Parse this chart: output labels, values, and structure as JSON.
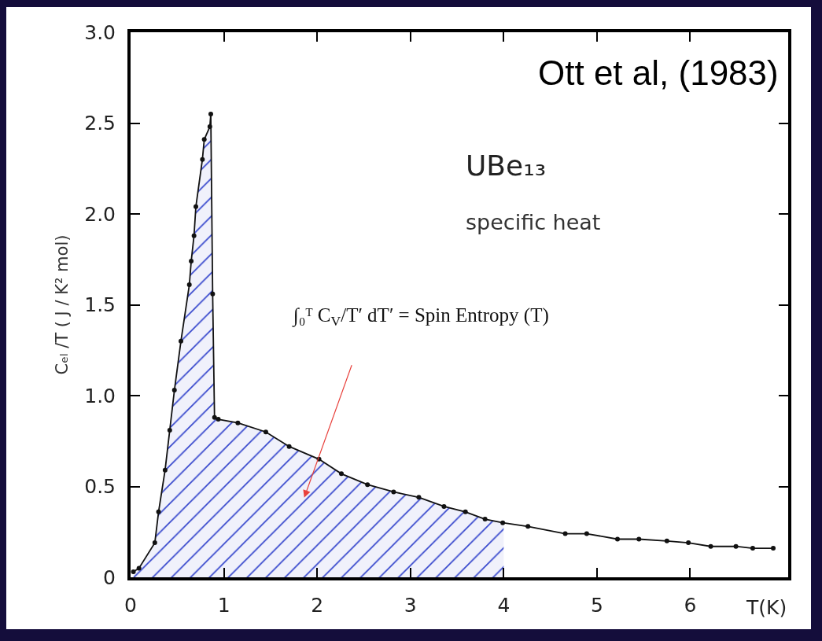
{
  "chart_data": {
    "type": "line",
    "xlabel": "T(K)",
    "ylabel": "Cₑₗ /T ( J / K² mol)",
    "xlim": [
      0,
      7.05
    ],
    "ylim": [
      0,
      3.0
    ],
    "xticks": [
      0,
      1,
      2,
      3,
      4,
      5,
      6
    ],
    "yticks": [
      0,
      0.5,
      {
        "value": 1,
        "label": "1.0"
      },
      1.5,
      {
        "value": 2,
        "label": "2.0"
      },
      2.5,
      {
        "value": 3,
        "label": "3.0"
      }
    ],
    "series": [
      {
        "type": "area",
        "color": "#3344cc",
        "x": [
          0.03,
          0.09,
          0.26,
          0.3,
          0.37,
          0.42,
          0.47,
          0.54,
          0.63,
          0.65,
          0.68,
          0.7,
          0.77,
          0.79,
          0.85,
          0.86,
          0.88,
          0.9,
          0.94,
          1.15,
          1.45,
          1.7,
          2.02,
          2.26,
          2.54,
          2.82,
          3.09,
          3.36,
          3.59,
          3.8,
          4.0
        ],
        "values": [
          0.03,
          0.05,
          0.19,
          0.36,
          0.59,
          0.81,
          1.03,
          1.3,
          1.61,
          1.74,
          1.88,
          2.04,
          2.3,
          2.41,
          2.48,
          2.55,
          1.56,
          0.88,
          0.87,
          0.85,
          0.8,
          0.72,
          0.65,
          0.57,
          0.51,
          0.47,
          0.44,
          0.39,
          0.36,
          0.32,
          0.3
        ]
      },
      {
        "color": "#111111",
        "marker": "circle",
        "x": [
          0.03,
          0.09,
          0.26,
          0.3,
          0.37,
          0.42,
          0.47,
          0.54,
          0.63,
          0.65,
          0.68,
          0.7,
          0.77,
          0.79,
          0.85,
          0.86,
          0.88,
          0.9,
          0.94,
          1.15,
          1.45,
          1.7,
          2.02,
          2.26,
          2.54,
          2.82,
          3.09,
          3.36,
          3.59,
          3.8,
          3.99,
          4.26,
          4.66,
          4.89,
          5.22,
          5.45,
          5.75,
          5.98,
          6.22,
          6.49,
          6.67,
          6.89
        ],
        "values": [
          0.03,
          0.05,
          0.19,
          0.36,
          0.59,
          0.81,
          1.03,
          1.3,
          1.61,
          1.74,
          1.88,
          2.04,
          2.3,
          2.41,
          2.48,
          2.55,
          1.56,
          0.88,
          0.87,
          0.85,
          0.8,
          0.72,
          0.65,
          0.57,
          0.51,
          0.47,
          0.44,
          0.39,
          0.36,
          0.32,
          0.3,
          0.28,
          0.24,
          0.24,
          0.21,
          0.21,
          0.2,
          0.19,
          0.17,
          0.17,
          0.16,
          0.16
        ]
      }
    ],
    "annotations": [
      "Ott et al, (1983)",
      "UBe₁₃",
      "specific heat",
      "∫₀ᵀ C$_{V}$/T′ dT′ = Spin Entropy (T)"
    ]
  }
}
